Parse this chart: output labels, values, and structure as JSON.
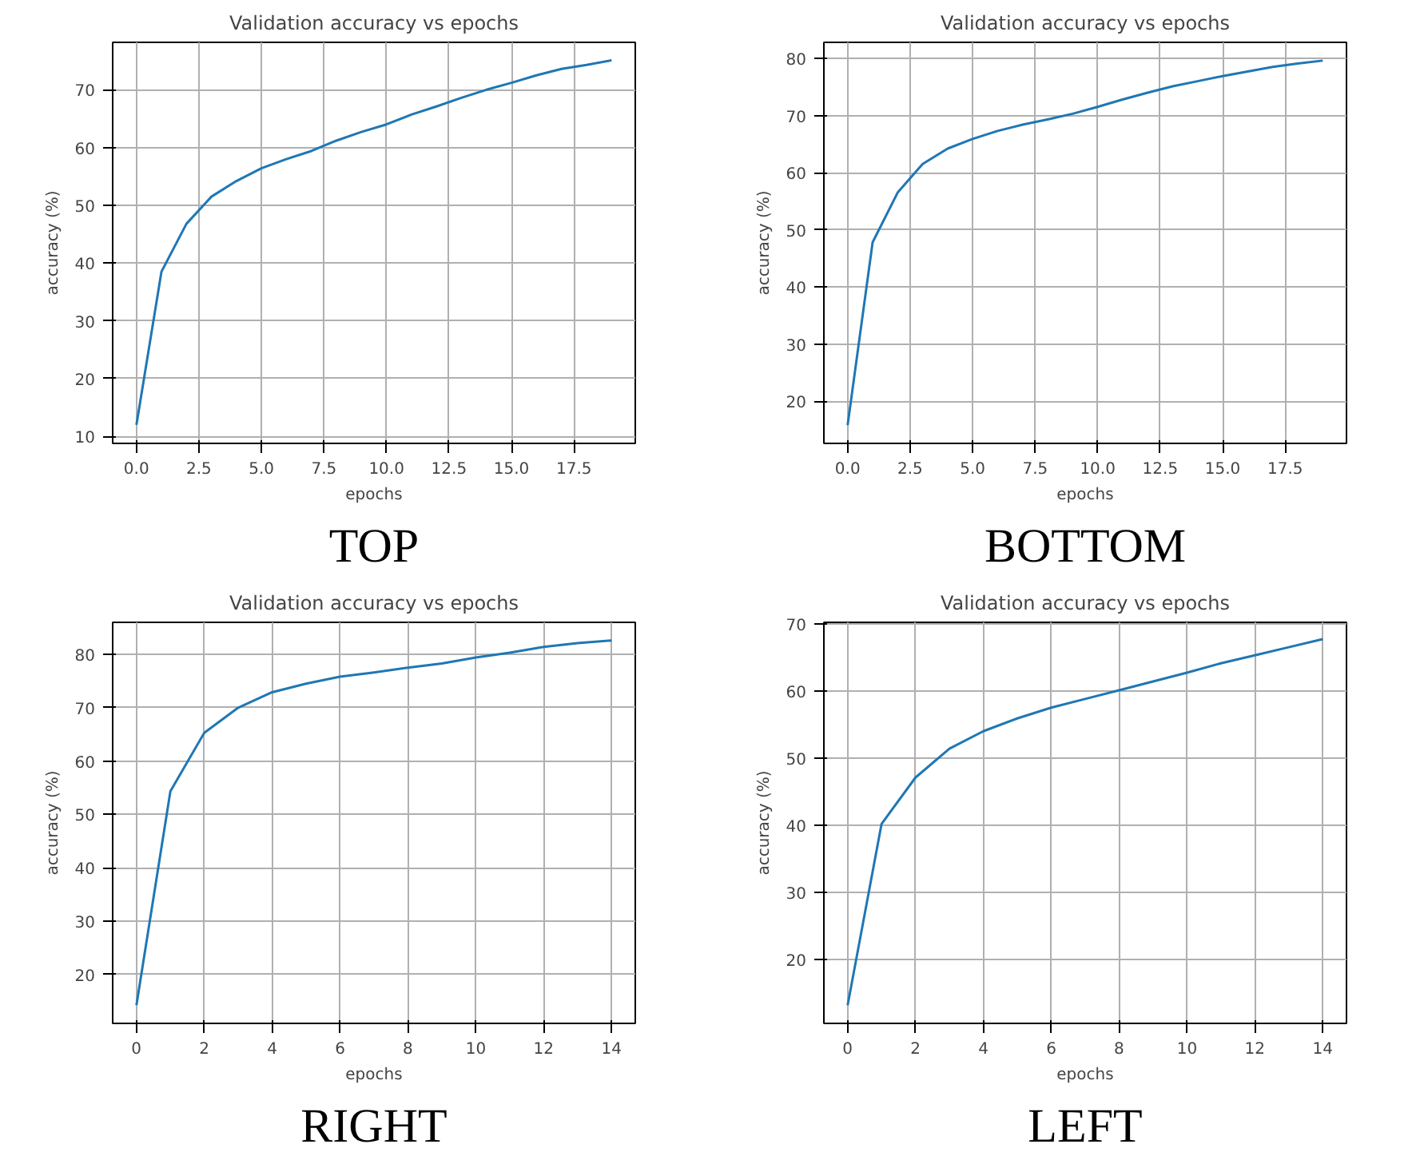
{
  "chart_data": [
    {
      "type": "line",
      "title": "Validation accuracy vs epochs",
      "xlabel": "epochs",
      "ylabel": "accuracy (%)",
      "annotations": [
        "TOP"
      ],
      "grid": true,
      "x": [
        0,
        1,
        2,
        3,
        4,
        5,
        6,
        7,
        8,
        9,
        10,
        11,
        12,
        13,
        14,
        15,
        16,
        17,
        18,
        19
      ],
      "series": [
        {
          "color": "#1f77b4",
          "values": [
            12.0,
            38.5,
            46.8,
            51.5,
            54.2,
            56.4,
            58.0,
            59.4,
            61.2,
            62.7,
            64.0,
            65.7,
            67.1,
            68.6,
            70.0,
            71.2,
            72.5,
            73.6,
            74.3,
            75.1
          ]
        }
      ],
      "xlim": [
        -0.95,
        19.95
      ],
      "ylim": [
        8.8,
        78.2
      ],
      "xticks": [
        {
          "value": 0,
          "label": "0.0"
        },
        2.5,
        {
          "value": 5,
          "label": "5.0"
        },
        7.5,
        {
          "value": 10,
          "label": "10.0"
        },
        12.5,
        {
          "value": 15,
          "label": "15.0"
        },
        17.5
      ],
      "yticks": [
        10,
        20,
        30,
        40,
        50,
        60,
        70
      ]
    },
    {
      "type": "line",
      "title": "Validation accuracy vs epochs",
      "xlabel": "epochs",
      "ylabel": "accuracy (%)",
      "annotations": [
        "BOTTOM"
      ],
      "grid": true,
      "x": [
        0,
        1,
        2,
        3,
        4,
        5,
        6,
        7,
        8,
        9,
        10,
        11,
        12,
        13,
        14,
        15,
        16,
        17,
        18,
        19
      ],
      "series": [
        {
          "color": "#1f77b4",
          "values": [
            15.8,
            47.8,
            56.5,
            61.5,
            64.2,
            65.9,
            67.3,
            68.4,
            69.3,
            70.3,
            71.5,
            72.8,
            74.0,
            75.1,
            76.0,
            76.9,
            77.7,
            78.5,
            79.1,
            79.6
          ]
        }
      ],
      "xlim": [
        -0.95,
        19.95
      ],
      "ylim": [
        12.6,
        82.8
      ],
      "xticks": [
        {
          "value": 0,
          "label": "0.0"
        },
        2.5,
        {
          "value": 5,
          "label": "5.0"
        },
        7.5,
        {
          "value": 10,
          "label": "10.0"
        },
        12.5,
        {
          "value": 15,
          "label": "15.0"
        },
        17.5
      ],
      "yticks": [
        20,
        30,
        40,
        50,
        60,
        70,
        80
      ]
    },
    {
      "type": "line",
      "title": "Validation accuracy vs epochs",
      "xlabel": "epochs",
      "ylabel": "accuracy (%)",
      "annotations": [
        "RIGHT"
      ],
      "grid": true,
      "x": [
        0,
        1,
        2,
        3,
        4,
        5,
        6,
        7,
        8,
        9,
        10,
        11,
        12,
        13,
        14
      ],
      "series": [
        {
          "color": "#1f77b4",
          "values": [
            14.2,
            54.3,
            65.3,
            70.0,
            72.9,
            74.5,
            75.8,
            76.6,
            77.5,
            78.3,
            79.4,
            80.3,
            81.4,
            82.1,
            82.6
          ]
        }
      ],
      "xlim": [
        -0.7,
        14.7
      ],
      "ylim": [
        10.8,
        86.0
      ],
      "xticks": [
        0,
        2,
        4,
        6,
        8,
        10,
        12,
        14
      ],
      "yticks": [
        20,
        30,
        40,
        50,
        60,
        70,
        80
      ]
    },
    {
      "type": "line",
      "title": "Validation accuracy vs epochs",
      "xlabel": "epochs",
      "ylabel": "accuracy (%)",
      "annotations": [
        "LEFT"
      ],
      "grid": true,
      "x": [
        0,
        1,
        2,
        3,
        4,
        5,
        6,
        7,
        8,
        9,
        10,
        11,
        12,
        13,
        14
      ],
      "series": [
        {
          "color": "#1f77b4",
          "values": [
            13.2,
            40.2,
            47.1,
            51.4,
            54.0,
            55.9,
            57.5,
            58.8,
            60.1,
            61.4,
            62.7,
            64.1,
            65.3,
            66.5,
            67.7
          ]
        }
      ],
      "xlim": [
        -0.7,
        14.7
      ],
      "ylim": [
        10.5,
        70.2
      ],
      "xticks": [
        0,
        2,
        4,
        6,
        8,
        10,
        12,
        14
      ],
      "yticks": [
        20,
        30,
        40,
        50,
        60,
        70
      ]
    }
  ]
}
